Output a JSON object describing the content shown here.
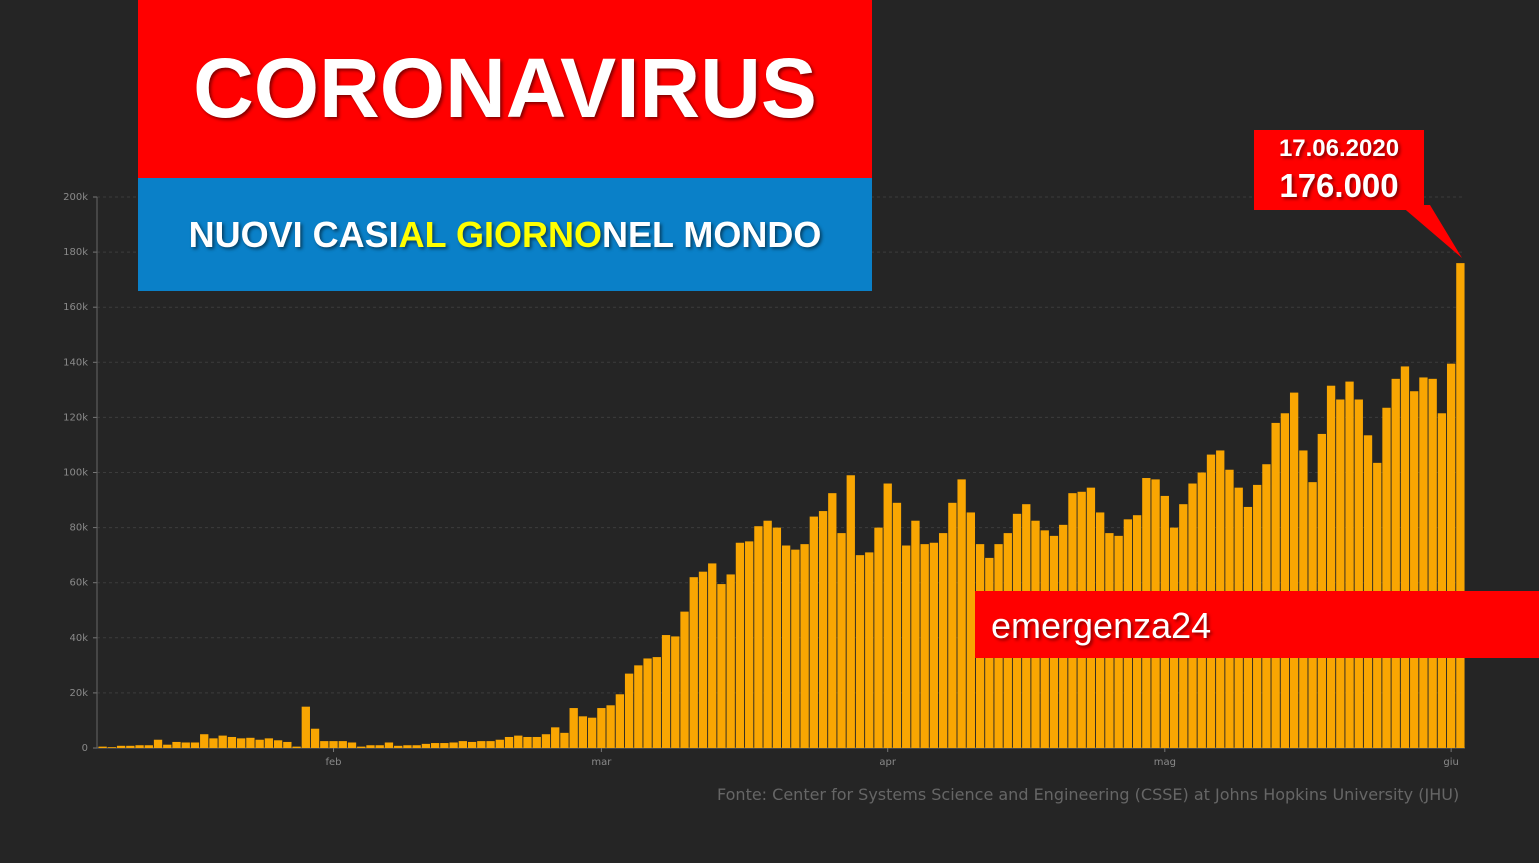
{
  "chart_data": {
    "type": "bar",
    "title": "CORONAVIRUS",
    "subtitle": [
      "NUOVI CASI",
      "AL GIORNO",
      "NEL MONDO"
    ],
    "annotation": {
      "date": "17.06.2020",
      "value": "176.000"
    },
    "brand": "emergenza24",
    "source": "Fonte: Center for Systems Science and Engineering (CSSE) at Johns Hopkins University (JHU)",
    "color": "#f9a602",
    "grid": true,
    "ylim": [
      0,
      200000
    ],
    "yticks": [
      0,
      {
        "value": 20000,
        "label": "20k"
      },
      {
        "value": 40000,
        "label": "40k"
      },
      {
        "value": 60000,
        "label": "60k"
      },
      {
        "value": 80000,
        "label": "80k"
      },
      {
        "value": 100000,
        "label": "100k"
      },
      {
        "value": 120000,
        "label": "120k"
      },
      {
        "value": 140000,
        "label": "140k"
      },
      {
        "value": 160000,
        "label": "160k"
      },
      {
        "value": 180000,
        "label": "180k"
      },
      {
        "value": 200000,
        "label": "200k"
      }
    ],
    "categories": [
      null,
      null,
      null,
      null,
      null,
      null,
      null,
      null,
      null,
      null,
      null,
      null,
      null,
      null,
      null,
      null,
      null,
      null,
      null,
      null,
      null,
      null,
      null,
      null,
      null,
      "feb",
      null,
      null,
      null,
      null,
      null,
      null,
      null,
      null,
      null,
      null,
      null,
      null,
      null,
      null,
      null,
      null,
      null,
      null,
      null,
      null,
      null,
      null,
      null,
      null,
      null,
      null,
      null,
      null,
      "mar",
      null,
      null,
      null,
      null,
      null,
      null,
      null,
      null,
      null,
      null,
      null,
      null,
      null,
      null,
      null,
      null,
      null,
      null,
      null,
      null,
      null,
      null,
      null,
      null,
      null,
      null,
      null,
      null,
      null,
      null,
      "apr",
      null,
      null,
      null,
      null,
      null,
      null,
      null,
      null,
      null,
      null,
      null,
      null,
      null,
      null,
      null,
      null,
      null,
      null,
      null,
      null,
      null,
      null,
      null,
      null,
      null,
      null,
      null,
      null,
      null,
      "mag",
      null,
      null,
      null,
      null,
      null,
      null,
      null,
      null,
      null,
      null,
      null,
      null,
      null,
      null,
      null,
      null,
      null,
      null,
      null,
      null,
      null,
      null,
      null,
      null,
      null,
      null,
      null,
      null,
      null,
      null,
      "giu",
      null
    ],
    "values": [
      500,
      300,
      800,
      800,
      1000,
      1000,
      3000,
      1200,
      2200,
      2000,
      2000,
      5000,
      3500,
      4500,
      4000,
      3500,
      3700,
      3000,
      3500,
      2800,
      2200,
      500,
      15000,
      7000,
      2500,
      2500,
      2500,
      2000,
      500,
      1000,
      1000,
      2000,
      800,
      1000,
      1000,
      1500,
      1800,
      1800,
      2000,
      2500,
      2200,
      2500,
      2500,
      3000,
      4000,
      4500,
      4000,
      4000,
      5000,
      7500,
      5500,
      14500,
      11500,
      11000,
      14500,
      15500,
      19500,
      27000,
      30000,
      32500,
      33000,
      41000,
      40500,
      49500,
      62000,
      64000,
      67000,
      59500,
      63000,
      74500,
      75000,
      80500,
      82500,
      80000,
      73500,
      72000,
      74000,
      84000,
      86000,
      92500,
      78000,
      99000,
      70000,
      71000,
      80000,
      96000,
      89000,
      73500,
      82500,
      74000,
      74500,
      78000,
      89000,
      97500,
      85500,
      74000,
      69000,
      74000,
      78000,
      85000,
      88500,
      82500,
      79000,
      77000,
      81000,
      92500,
      93000,
      94500,
      85500,
      78000,
      77000,
      83000,
      84500,
      98000,
      97500,
      91500,
      80000,
      88500,
      96000,
      100000,
      106500,
      108000,
      101000,
      94500,
      87500,
      95500,
      103000,
      118000,
      121500,
      129000,
      108000,
      96500,
      114000,
      131500,
      126500,
      133000,
      126500,
      113500,
      103500,
      123500,
      134000,
      138500,
      129500,
      134500,
      134000,
      121500,
      139500,
      176000
    ]
  }
}
